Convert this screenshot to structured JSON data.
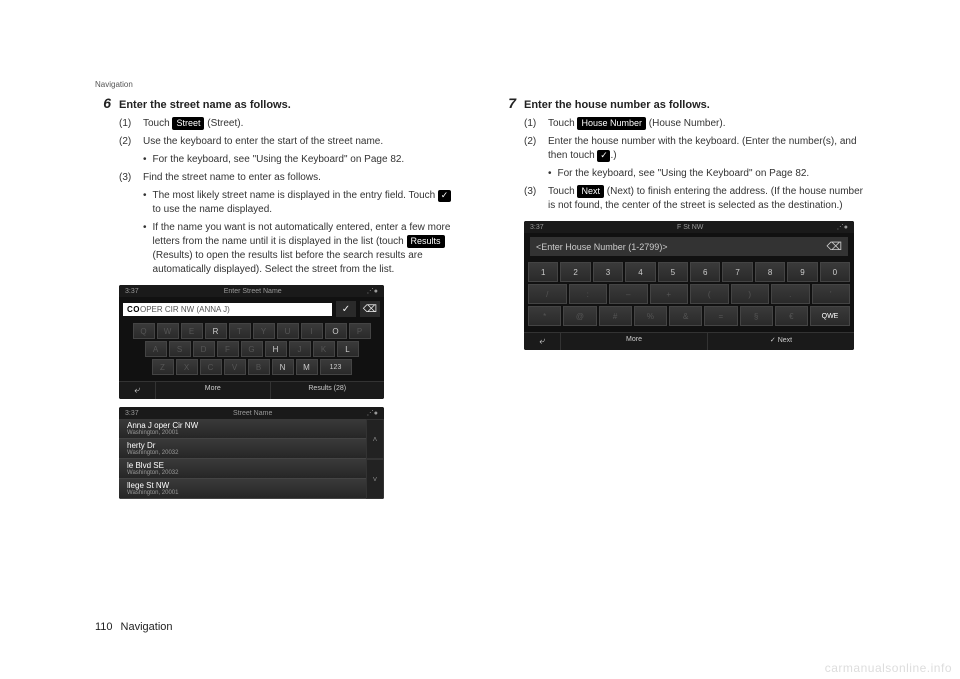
{
  "header": {
    "section": "Navigation"
  },
  "footer": {
    "page_number": "110",
    "section": "Navigation"
  },
  "watermark": "carmanualsonline.info",
  "left": {
    "step_number": "6",
    "step_title": "Enter the street name as follows.",
    "sub1_num": "(1)",
    "sub1_text_pre": "Touch ",
    "sub1_chip": "Street",
    "sub1_text_post": " (Street).",
    "sub2_num": "(2)",
    "sub2_text": "Use the keyboard to enter the start of the street name.",
    "bullet2a": "For the keyboard, see \"Using the Keyboard\" on Page 82.",
    "sub3_num": "(3)",
    "sub3_text": "Find the street name to enter as follows.",
    "bullet3a_pre": "The most likely street name is displayed in the entry field. Touch ",
    "bullet3a_post": " to use the name displayed.",
    "bullet3b_pre": "If the name you want is not automatically entered, enter a few more letters from the name until it is displayed in the list (touch ",
    "bullet3b_chip": "Results",
    "bullet3b_post": " (Results) to open the results list before the search results are automatically displayed). Select the street from the list."
  },
  "right": {
    "step_number": "7",
    "step_title": "Enter the house number as follows.",
    "sub1_num": "(1)",
    "sub1_text_pre": "Touch ",
    "sub1_chip": "House Number",
    "sub1_text_post": " (House Number).",
    "sub2_num": "(2)",
    "sub2_text_pre": "Enter the house number with the keyboard. (Enter the number(s), and then touch ",
    "sub2_text_post": ".)",
    "bullet2a": "For the keyboard, see \"Using the Keyboard\" on Page 82.",
    "sub3_num": "(3)",
    "sub3_text_pre": "Touch ",
    "sub3_chip": "Next",
    "sub3_text_post": " (Next) to finish entering the address. (If the house number is not found, the center of the street is selected as the destination.)"
  },
  "mock_kb": {
    "time": "3:37",
    "title": "Enter Street Name",
    "entry_typed": "CO",
    "entry_suggest": "OPER CIR NW (ANNA J)",
    "row1": [
      "Q",
      "W",
      "E",
      "R",
      "T",
      "Y",
      "U",
      "I",
      "O",
      "P"
    ],
    "row1_dim": [
      true,
      true,
      true,
      false,
      true,
      true,
      true,
      true,
      false,
      true
    ],
    "row2": [
      "A",
      "S",
      "D",
      "F",
      "G",
      "H",
      "J",
      "K",
      "L"
    ],
    "row2_dim": [
      true,
      true,
      true,
      true,
      true,
      false,
      true,
      true,
      false
    ],
    "row3": [
      "Z",
      "X",
      "C",
      "V",
      "B",
      "N",
      "M",
      "123"
    ],
    "row3_dim": [
      true,
      true,
      true,
      true,
      true,
      false,
      false,
      false
    ],
    "footer_back": "⤶",
    "footer_more": "More",
    "footer_results": "Results (28)"
  },
  "mock_list": {
    "time": "3:37",
    "title": "Street Name",
    "items": [
      {
        "t1": "Anna J       oper Cir NW",
        "t2": "Washington, 20001"
      },
      {
        "t1": "herty Dr",
        "t2": "Washington, 20032"
      },
      {
        "t1": "le Blvd SE",
        "t2": "Washington, 20032"
      },
      {
        "t1": "llege St NW",
        "t2": "Washington, 20001"
      }
    ]
  },
  "mock_num": {
    "time": "3:37",
    "title": "F St NW",
    "prompt": "<Enter House Number (1-2799)>",
    "row1": [
      "1",
      "2",
      "3",
      "4",
      "5",
      "6",
      "7",
      "8",
      "9",
      "0"
    ],
    "row2": [
      "/",
      ":",
      "–",
      "+",
      "(",
      ")",
      ".",
      "'"
    ],
    "row3": [
      "*",
      "@",
      "#",
      "%",
      "&",
      "=",
      "§",
      "€",
      "QWE"
    ],
    "footer_back": "⤶",
    "footer_more": "More",
    "footer_next": "✓ Next"
  }
}
